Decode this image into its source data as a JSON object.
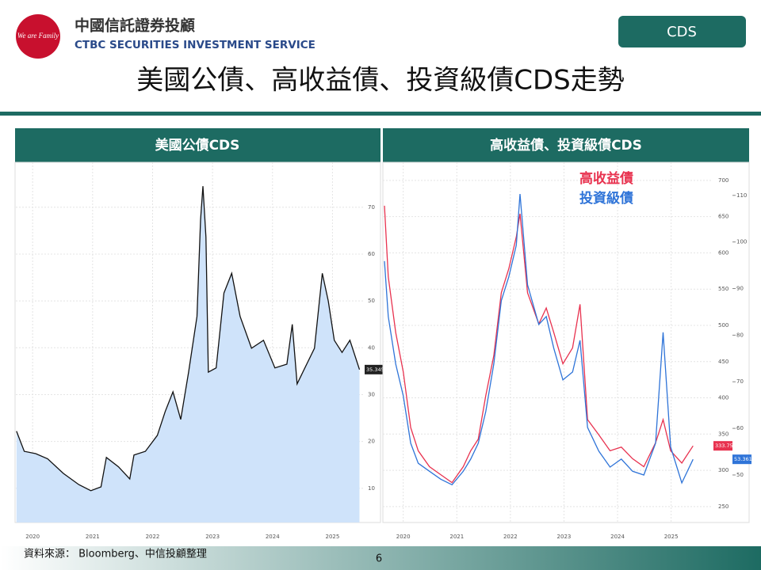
{
  "header": {
    "company_zh": "中國信託證券投顧",
    "company_en": "CTBC SECURITIES INVESTMENT SERVICE",
    "logo_text": "We are Family",
    "tag": "CDS",
    "title": "美國公債、高收益債、投資級債CDS走勢"
  },
  "panels": [
    "美國公債CDS",
    "高收益債、投資級債CDS"
  ],
  "footer": {
    "source": "資料來源： Bloomberg、中信投顧整理",
    "page": "6"
  },
  "chart_data": [
    {
      "type": "area",
      "xlim": [
        2019.72,
        2025.51
      ],
      "ylim": [
        2.7,
        79.6
      ],
      "xticks": [
        2020,
        2021,
        2022,
        2023,
        2024,
        2025
      ],
      "yticks": [
        10,
        20,
        30,
        40,
        50,
        60,
        70
      ],
      "x": [
        2019.73,
        2019.86,
        2020.05,
        2020.25,
        2020.51,
        2020.77,
        2020.97,
        2021.14,
        2021.23,
        2021.43,
        2021.62,
        2021.69,
        2021.88,
        2022.08,
        2022.21,
        2022.34,
        2022.47,
        2022.6,
        2022.74,
        2022.8,
        2022.84,
        2022.89,
        2022.93,
        2023.06,
        2023.19,
        2023.32,
        2023.46,
        2023.65,
        2023.85,
        2024.04,
        2024.24,
        2024.33,
        2024.41,
        2024.57,
        2024.7,
        2024.83,
        2024.93,
        2025.03,
        2025.16,
        2025.29,
        2025.45
      ],
      "series": [
        {
          "color": "#111111",
          "fill": "#cfe3fa",
          "values": [
            22.2,
            17.9,
            17.4,
            16.3,
            13.2,
            10.8,
            9.5,
            10.3,
            16.6,
            14.6,
            12.0,
            17.1,
            17.9,
            21.3,
            26.4,
            30.6,
            24.7,
            34.8,
            46.7,
            67.3,
            74.5,
            63.6,
            34.8,
            35.7,
            51.7,
            55.9,
            46.7,
            39.9,
            41.6,
            35.7,
            36.5,
            45.0,
            32.3,
            36.5,
            39.9,
            55.9,
            50.0,
            41.6,
            39.0,
            41.6,
            35.345
          ]
        }
      ]
    },
    {
      "type": "line",
      "xlim": [
        2019.62,
        2025.76
      ],
      "ylim": [
        228,
        725
      ],
      "y2lim": [
        39.8,
        117.1
      ],
      "xticks": [
        2020,
        2021,
        2022,
        2023,
        2024,
        2025
      ],
      "yticks": [
        250,
        300,
        350,
        400,
        450,
        500,
        550,
        600,
        650,
        700
      ],
      "y2ticks": [
        50,
        60,
        70,
        80,
        90,
        100,
        110
      ],
      "x": [
        2019.65,
        2019.72,
        2019.86,
        2020.0,
        2020.14,
        2020.28,
        2020.49,
        2020.7,
        2020.91,
        2021.12,
        2021.26,
        2021.4,
        2021.54,
        2021.69,
        2021.83,
        2021.97,
        2022.11,
        2022.18,
        2022.32,
        2022.53,
        2022.67,
        2022.81,
        2022.98,
        2023.16,
        2023.3,
        2023.44,
        2023.65,
        2023.86,
        2024.07,
        2024.28,
        2024.49,
        2024.71,
        2024.85,
        2024.99,
        2025.2,
        2025.41
      ],
      "series": [
        {
          "name": "高收益債",
          "color": "#e8324f",
          "values": [
            665,
            567,
            490,
            436,
            359,
            327,
            305,
            294,
            283,
            305,
            327,
            343,
            403,
            458,
            545,
            578,
            622,
            654,
            545,
            502,
            524,
            490,
            447,
            469,
            529,
            370,
            349,
            327,
            332,
            316,
            305,
            338,
            370,
            327,
            310,
            333.753
          ]
        },
        {
          "name": "投資級債",
          "color": "#2f74d8",
          "axis": "y2",
          "values": [
            95.9,
            84.0,
            73.8,
            67.0,
            56.8,
            52.5,
            50.8,
            49.1,
            47.9,
            50.8,
            53.4,
            56.8,
            63.6,
            73.8,
            87.4,
            92.5,
            99.3,
            110.3,
            90.8,
            82.3,
            84.0,
            77.2,
            70.4,
            72.1,
            78.9,
            60.2,
            55.1,
            51.7,
            53.4,
            50.8,
            50.0,
            56.8,
            80.6,
            56.0,
            48.3,
            53.361
          ]
        }
      ]
    }
  ]
}
